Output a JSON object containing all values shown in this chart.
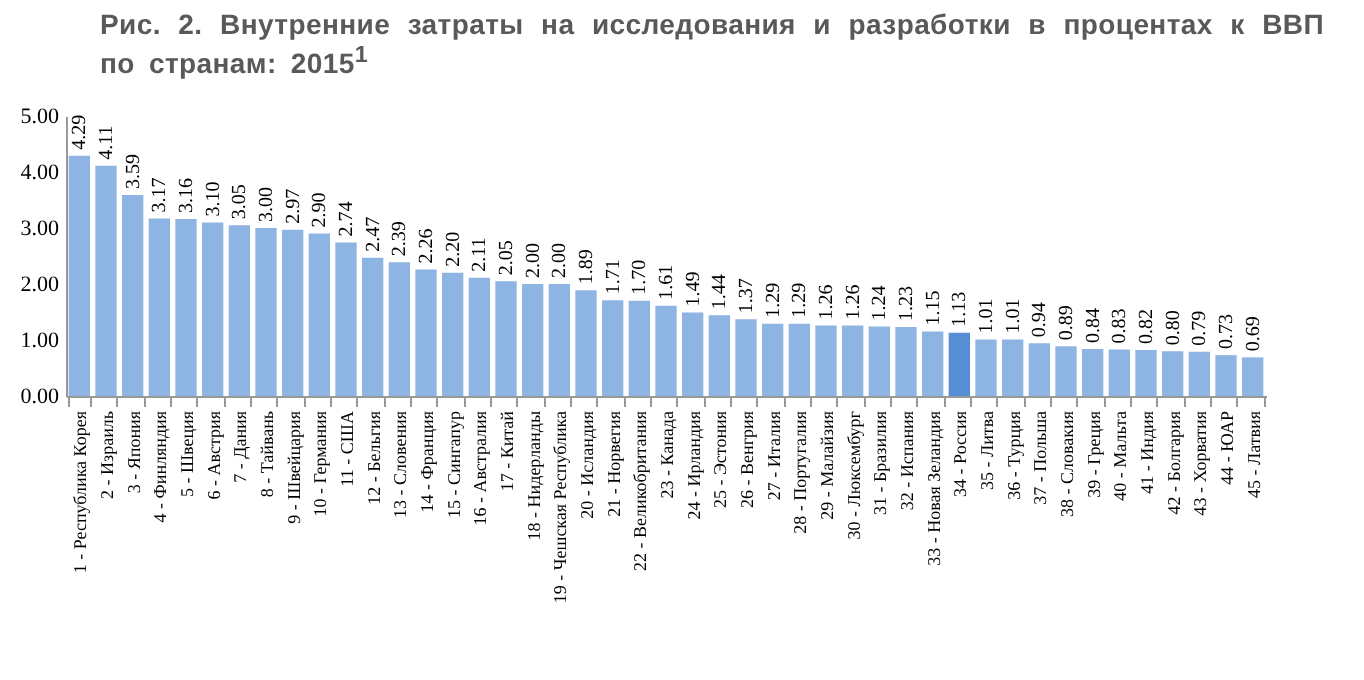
{
  "chart_data": {
    "type": "bar",
    "title": "Рис. 2. Внутренние затраты на исследования и разработки в процентах к ВВП по странам: 2015$^{1}$",
    "categories": [
      "1 - Республика Корея",
      "2 - Израиль",
      "3 - Япония",
      "4 - Финляндия",
      "5 - Швеция",
      "6 - Австрия",
      "7 - Дания",
      "8 - Тайвань",
      "9 - Швейцария",
      "10 - Германия",
      "11 - США",
      "12 - Бельгия",
      "13 - Словения",
      "14 - Франция",
      "15 - Сингапур",
      "16 - Австралия",
      "17 - Китай",
      "18 - Нидерланды",
      "19 - Чешская Республика",
      "20 - Исландия",
      "21 - Норвегия",
      "22 - Великобритания",
      "23 - Канада",
      "24 - Ирландия",
      "25 - Эстония",
      "26 - Венгрия",
      "27 - Италия",
      "28 - Португалия",
      "29 - Малайзия",
      "30 - Люксембург",
      "31 - Бразилия",
      "32 - Испания",
      "33 - Новая Зеландия",
      "34 - Россия",
      "35 - Литва",
      "36 - Турция",
      "37 - Польша",
      "38 - Словакия",
      "39 - Греция",
      "40 - Мальта",
      "41 - Индия",
      "42 - Болгария",
      "43 - Хорватия",
      "44 - ЮАР",
      "45 - Латвия"
    ],
    "values": [
      4.29,
      4.11,
      3.59,
      3.17,
      3.16,
      3.1,
      3.05,
      3.0,
      2.97,
      2.9,
      2.74,
      2.47,
      2.39,
      2.26,
      2.2,
      2.11,
      2.05,
      2.0,
      2.0,
      1.89,
      1.71,
      1.7,
      1.61,
      1.49,
      1.44,
      1.37,
      1.29,
      1.29,
      1.26,
      1.26,
      1.24,
      1.23,
      1.15,
      1.13,
      1.01,
      1.01,
      0.94,
      0.89,
      0.84,
      0.83,
      0.82,
      0.8,
      0.79,
      0.73,
      0.69
    ],
    "value_labels": [
      "4.29",
      "4.11",
      "3.59",
      "3.17",
      "3.16",
      "3.10",
      "3.05",
      "3.00",
      "2.97",
      "2.90",
      "2.74",
      "2.47",
      "2.39",
      "2.26",
      "2.20",
      "2.11",
      "2.05",
      "2.00",
      "2.00",
      "1.89",
      "1.71",
      "1.70",
      "1.61",
      "1.49",
      "1.44",
      "1.37",
      "1.29",
      "1.29",
      "1.26",
      "1.26",
      "1.24",
      "1.23",
      "1.15",
      "1.13",
      "1.01",
      "1.01",
      "0.94",
      "0.89",
      "0.84",
      "0.83",
      "0.82",
      "0.80",
      "0.79",
      "0.73",
      "0.69"
    ],
    "colors": [
      "#8eb4e3",
      "#8eb4e3",
      "#8eb4e3",
      "#8eb4e3",
      "#8eb4e3",
      "#8eb4e3",
      "#8eb4e3",
      "#8eb4e3",
      "#8eb4e3",
      "#8eb4e3",
      "#8eb4e3",
      "#8eb4e3",
      "#8eb4e3",
      "#8eb4e3",
      "#8eb4e3",
      "#8eb4e3",
      "#8eb4e3",
      "#8eb4e3",
      "#8eb4e3",
      "#8eb4e3",
      "#8eb4e3",
      "#8eb4e3",
      "#8eb4e3",
      "#8eb4e3",
      "#8eb4e3",
      "#8eb4e3",
      "#8eb4e3",
      "#8eb4e3",
      "#8eb4e3",
      "#8eb4e3",
      "#8eb4e3",
      "#8eb4e3",
      "#8eb4e3",
      "#558ed5",
      "#8eb4e3",
      "#8eb4e3",
      "#8eb4e3",
      "#8eb4e3",
      "#8eb4e3",
      "#8eb4e3",
      "#8eb4e3",
      "#8eb4e3",
      "#8eb4e3",
      "#8eb4e3",
      "#8eb4e3"
    ],
    "ylim": [
      0,
      5
    ],
    "yticks": [
      {
        "value": 0,
        "label": "0.00"
      },
      {
        "value": 1,
        "label": "1.00"
      },
      {
        "value": 2,
        "label": "2.00"
      },
      {
        "value": 3,
        "label": "3.00"
      },
      {
        "value": 4,
        "label": "4.00"
      },
      {
        "value": 5,
        "label": "5.00"
      }
    ],
    "grid": false,
    "legend": false
  }
}
